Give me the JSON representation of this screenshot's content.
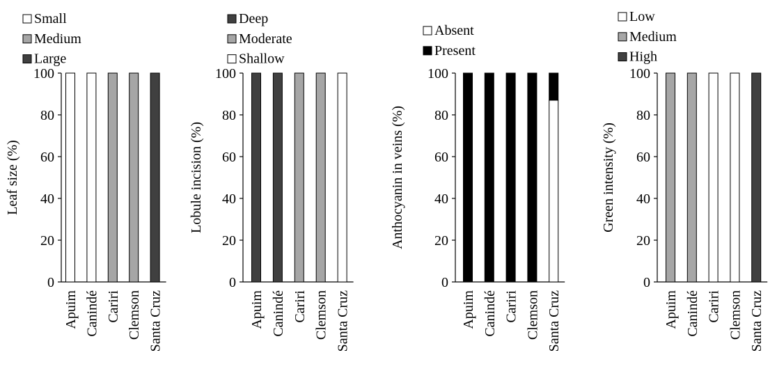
{
  "chart_data": [
    {
      "type": "bar",
      "stacked": true,
      "categories": [
        "Apuim",
        "Canindé",
        "Cariri",
        "Clemson",
        "Santa Cruz"
      ],
      "ylabel": "Leaf size (%)",
      "ylim": [
        0,
        100
      ],
      "yticks": [
        "0",
        "20",
        "40",
        "60",
        "80",
        "100"
      ],
      "legend_position": "top-left",
      "series": [
        {
          "name": "Small",
          "color": "#ffffff",
          "values": [
            100,
            100,
            0,
            0,
            0
          ]
        },
        {
          "name": "Medium",
          "color": "#a6a6a6",
          "values": [
            0,
            0,
            100,
            100,
            0
          ]
        },
        {
          "name": "Large",
          "color": "#404040",
          "values": [
            0,
            0,
            0,
            0,
            100
          ]
        }
      ]
    },
    {
      "type": "bar",
      "stacked": true,
      "categories": [
        "Apuim",
        "Canindé",
        "Cariri",
        "Clemson",
        "Santa Cruz"
      ],
      "ylabel": "Lobule incision (%)",
      "ylim": [
        0,
        100
      ],
      "yticks": [
        "0",
        "20",
        "40",
        "60",
        "80",
        "100"
      ],
      "legend_position": "top-left",
      "series": [
        {
          "name": "Deep",
          "color": "#404040",
          "values": [
            100,
            100,
            0,
            0,
            0
          ]
        },
        {
          "name": "Moderate",
          "color": "#a6a6a6",
          "values": [
            0,
            0,
            100,
            100,
            0
          ]
        },
        {
          "name": "Shallow",
          "color": "#ffffff",
          "values": [
            0,
            0,
            0,
            0,
            100
          ]
        }
      ]
    },
    {
      "type": "bar",
      "stacked": true,
      "categories": [
        "Apuim",
        "Canindé",
        "Cariri",
        "Clemson",
        "Santa Cruz"
      ],
      "ylabel": "Anthocyanin in veins (%)",
      "ylim": [
        0,
        100
      ],
      "yticks": [
        "0",
        "20",
        "40",
        "60",
        "80",
        "100"
      ],
      "legend_position": "top-left",
      "series": [
        {
          "name": "Absent",
          "color": "#ffffff",
          "values": [
            0,
            0,
            0,
            0,
            87
          ]
        },
        {
          "name": "Present",
          "color": "#000000",
          "values": [
            100,
            100,
            100,
            100,
            13
          ]
        }
      ]
    },
    {
      "type": "bar",
      "stacked": true,
      "categories": [
        "Apuim",
        "Canindé",
        "Cariri",
        "Clemson",
        "Santa Cruz"
      ],
      "ylabel": "Green intensity (%)",
      "ylim": [
        0,
        100
      ],
      "yticks": [
        "0",
        "20",
        "40",
        "60",
        "80",
        "100"
      ],
      "legend_position": "top-left",
      "series": [
        {
          "name": "Low",
          "color": "#ffffff",
          "values": [
            0,
            0,
            100,
            100,
            0
          ]
        },
        {
          "name": "Medium",
          "color": "#a6a6a6",
          "values": [
            100,
            100,
            0,
            0,
            0
          ]
        },
        {
          "name": "High",
          "color": "#404040",
          "values": [
            0,
            0,
            0,
            0,
            100
          ]
        }
      ]
    }
  ]
}
